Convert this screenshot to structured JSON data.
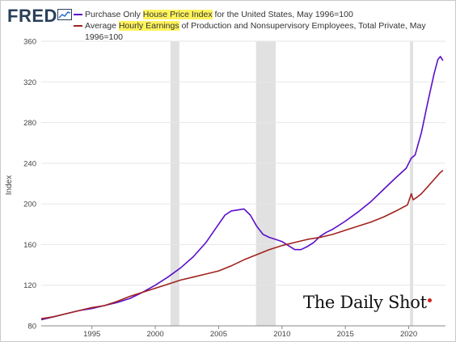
{
  "brand": {
    "logo_text": "FRED"
  },
  "legend": [
    {
      "before": "Purchase Only ",
      "highlight": "House Price Index",
      "after": " for the United States, May 1996=100",
      "color": "#5b0fc8"
    },
    {
      "before": "Average ",
      "highlight": "Hourly Earnings",
      "after": " of Production and Nonsupervisory Employees, Total Private, May 1996=100",
      "color": "#a0231f"
    }
  ],
  "watermark": {
    "text": "The Daily Shot"
  },
  "chart_data": {
    "type": "line",
    "ylabel": "Index",
    "xlabel": "",
    "xlim": [
      1991.0,
      2022.9
    ],
    "ylim": [
      80,
      360
    ],
    "yticks": [
      80,
      120,
      160,
      200,
      240,
      280,
      320,
      360
    ],
    "xticks": [
      1995,
      2000,
      2005,
      2010,
      2015,
      2020
    ],
    "grid": "horizontal",
    "recessions": [
      [
        2001.2,
        2001.9
      ],
      [
        2007.95,
        2009.5
      ],
      [
        2020.1,
        2020.35
      ]
    ],
    "series": [
      {
        "name": "Purchase Only House Price Index for the United States, May 1996=100",
        "color": "#5b0fc8",
        "x": [
          1991.0,
          1992,
          1993,
          1994,
          1995,
          1996,
          1997,
          1998,
          1999,
          2000,
          2001,
          2002,
          2003,
          2004,
          2004.5,
          2005,
          2005.5,
          2006,
          2006.5,
          2007,
          2007.5,
          2008,
          2008.5,
          2009,
          2009.5,
          2010,
          2010.5,
          2011,
          2011.5,
          2012,
          2012.5,
          2013,
          2013.5,
          2014,
          2015,
          2016,
          2017,
          2018,
          2019,
          2019.8,
          2020.2,
          2020.5,
          2021,
          2021.5,
          2022,
          2022.3,
          2022.5,
          2022.7
        ],
        "values": [
          86,
          89,
          92,
          95,
          97,
          100,
          103,
          107,
          113,
          120,
          128,
          137,
          148,
          162,
          171,
          180,
          189,
          193,
          194,
          195,
          189,
          178,
          170,
          167,
          165,
          163,
          159,
          155,
          155,
          158,
          162,
          168,
          172,
          175,
          183,
          192,
          202,
          214,
          226,
          235,
          245,
          248,
          270,
          300,
          328,
          342,
          345,
          341
        ]
      },
      {
        "name": "Average Hourly Earnings of Production and Nonsupervisory Employees, Total Private, May 1996=100",
        "color": "#a0231f",
        "x": [
          1991.0,
          1992,
          1993,
          1994,
          1995,
          1996,
          1997,
          1998,
          1999,
          2000,
          2001,
          2002,
          2003,
          2004,
          2005,
          2006,
          2007,
          2008,
          2009,
          2010,
          2011,
          2012,
          2013,
          2014,
          2015,
          2016,
          2017,
          2018,
          2019,
          2019.9,
          2020.2,
          2020.35,
          2020.6,
          2021,
          2021.5,
          2022,
          2022.5,
          2022.7
        ],
        "values": [
          87,
          89,
          92,
          95,
          98,
          100,
          104,
          109,
          113,
          117,
          121,
          125,
          128,
          131,
          134,
          139,
          145,
          150,
          155,
          159,
          162,
          165,
          167,
          170,
          174,
          178,
          182,
          187,
          193,
          199,
          210,
          204,
          206,
          210,
          217,
          224,
          231,
          233
        ]
      }
    ]
  }
}
